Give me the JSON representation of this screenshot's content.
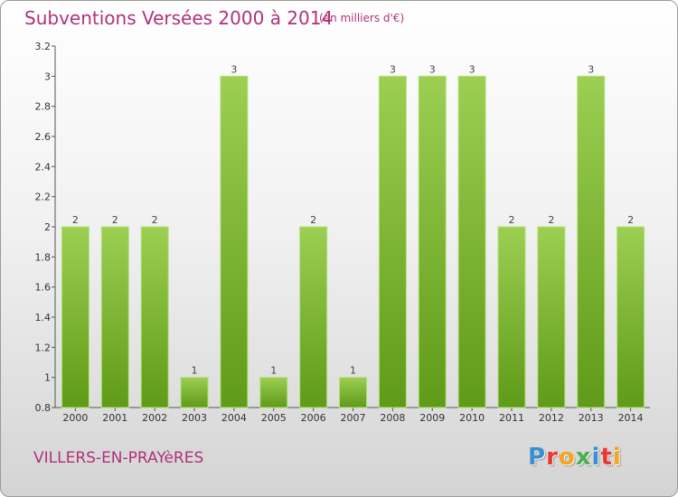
{
  "chart_data": {
    "type": "bar",
    "title": "Subventions Versées 2000 à 2014",
    "subtitle": "(en milliers d'€)",
    "xlabel": "",
    "ylabel": "",
    "categories": [
      "2000",
      "2001",
      "2002",
      "2003",
      "2004",
      "2005",
      "2006",
      "2007",
      "2008",
      "2009",
      "2010",
      "2011",
      "2012",
      "2013",
      "2014"
    ],
    "values": [
      2,
      2,
      2,
      1,
      3,
      1,
      2,
      1,
      3,
      3,
      3,
      2,
      2,
      3,
      2
    ],
    "data_labels": [
      "2",
      "2",
      "2",
      "1",
      "3",
      "1",
      "2",
      "1",
      "3",
      "3",
      "3",
      "2",
      "2",
      "3",
      "2"
    ],
    "yticks": [
      "0.8",
      "1",
      "1.2",
      "1.4",
      "1.6",
      "1.8",
      "2",
      "2.2",
      "2.4",
      "2.6",
      "2.8",
      "3",
      "3.2"
    ],
    "ylim": [
      0.8,
      3.2
    ],
    "ytick_positions": [
      0.8,
      1,
      1.2,
      1.4,
      1.6,
      1.8,
      2,
      2.2,
      2.4,
      2.6,
      2.8,
      3,
      3.2
    ],
    "grid": false,
    "legend": "none",
    "bar_color": "#8cc63f",
    "colors": {
      "accent": "#b0327a"
    }
  },
  "footer": {
    "location": "VILLERS-EN-PRAYèRES"
  },
  "logo": {
    "text": "Proxiti",
    "letter_colors": [
      "#3a8fd1",
      "#e8392f",
      "#f5a51c",
      "#4caf50",
      "#3a8fd1",
      "#e8392f",
      "#f5a51c"
    ]
  }
}
